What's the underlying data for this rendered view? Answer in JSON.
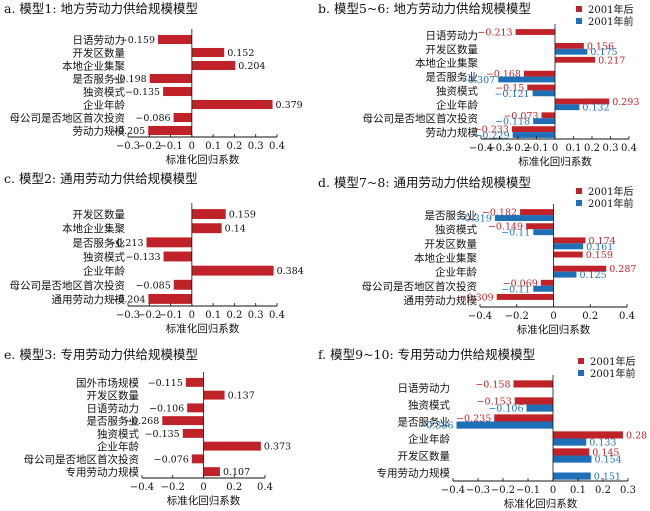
{
  "colors": {
    "after": "#c0222a",
    "before": "#1f6fb7",
    "axis": "#111111"
  },
  "chart_data": [
    {
      "type": "bar",
      "title": "a. 模型1: 地方劳动力供给规模模型",
      "xlabel": "标准化回归系数",
      "xlim": [
        -0.3,
        0.4
      ],
      "xticks": [
        -0.3,
        -0.2,
        -0.1,
        0,
        0.1,
        0.2,
        0.3,
        0.4
      ],
      "xticklabels": [
        "−0.3",
        "−0.2",
        "−0.1",
        "0",
        "0.1",
        "0.2",
        "0.3",
        "0.4"
      ],
      "categories": [
        "日语劳动力",
        "开发区数量",
        "本地企业集聚",
        "是否服务业",
        "独资模式",
        "企业年龄",
        "母公司是否地区首次投资",
        "劳动力规模"
      ],
      "series": [
        {
          "key": "after",
          "values": [
            -0.159,
            0.152,
            0.204,
            -0.198,
            -0.135,
            0.379,
            -0.086,
            -0.205
          ],
          "labels": [
            "−0.159",
            "0.152",
            "0.204",
            "−0.198",
            "−0.135",
            "0.379",
            "−0.086",
            "−0.205"
          ]
        }
      ]
    },
    {
      "type": "bar",
      "title": "b. 模型5~6: 地方劳动力供给规模模型",
      "xlabel": "标准化回归系数",
      "xlim": [
        -0.4,
        0.4
      ],
      "xticks": [
        -0.4,
        -0.3,
        -0.2,
        -0.1,
        0,
        0.1,
        0.2,
        0.3,
        0.4
      ],
      "xticklabels": [
        "−0.4",
        "−0.3",
        "−0.2",
        "−0.1",
        "0",
        "0.1",
        "0.2",
        "0.3",
        "0.4"
      ],
      "categories": [
        "日语劳动力",
        "开发区数量",
        "本地企业集聚",
        "是否服务业",
        "独资模式",
        "企业年龄",
        "母公司是否地区首次投资",
        "劳动力规模"
      ],
      "legend": [
        "2001年后",
        "2001年前"
      ],
      "series": [
        {
          "name": "2001年后",
          "key": "after",
          "values": [
            -0.213,
            0.156,
            0.217,
            -0.168,
            -0.15,
            0.293,
            -0.073,
            -0.233
          ],
          "labels": [
            "−0.213",
            "0.156",
            "0.217",
            "−0.168",
            "−0.15",
            "0.293",
            "−0.073",
            "−0.233"
          ]
        },
        {
          "name": "2001年前",
          "key": "before",
          "values": [
            null,
            0.175,
            null,
            -0.307,
            -0.121,
            0.132,
            -0.118,
            -0.229
          ],
          "labels": [
            null,
            "0.175",
            null,
            "−0.307",
            "−0.121",
            "0.132",
            "−0.118",
            "−0.229"
          ]
        }
      ]
    },
    {
      "type": "bar",
      "title": "c. 模型2: 通用劳动力供给规模模型",
      "xlabel": "标准化回归系数",
      "xlim": [
        -0.3,
        0.4
      ],
      "xticks": [
        -0.3,
        -0.2,
        -0.1,
        0,
        0.1,
        0.2,
        0.3,
        0.4
      ],
      "xticklabels": [
        "−0.3",
        "−0.2",
        "−0.1",
        "0",
        "0.1",
        "0.2",
        "0.3",
        "0.4"
      ],
      "categories": [
        "开发区数量",
        "本地企业集聚",
        "是否服务业",
        "独资模式",
        "企业年龄",
        "母公司是否地区首次投资",
        "通用劳动力规模"
      ],
      "series": [
        {
          "key": "after",
          "values": [
            0.159,
            0.14,
            -0.213,
            -0.133,
            0.384,
            -0.085,
            -0.204
          ],
          "labels": [
            "0.159",
            "0.14",
            "−0.213",
            "−0.133",
            "0.384",
            "−0.085",
            "−0.204"
          ]
        }
      ]
    },
    {
      "type": "bar",
      "title": "d. 模型7~8: 通用劳动力供给规模模型",
      "xlabel": "标准化回归系数",
      "xlim": [
        -0.4,
        0.4
      ],
      "xticks": [
        -0.4,
        -0.2,
        0,
        0.2,
        0.4
      ],
      "xticklabels": [
        "−0.4",
        "−0.2",
        "0",
        "0.2",
        "0.4"
      ],
      "categories": [
        "是否服务业",
        "独资模式",
        "开发区数量",
        "本地企业集聚",
        "企业年龄",
        "母公司是否地区首次投资",
        "通用劳动力规模"
      ],
      "legend": [
        "2001年后",
        "2001年前"
      ],
      "series": [
        {
          "name": "2001年后",
          "key": "after",
          "values": [
            -0.182,
            -0.149,
            0.174,
            0.159,
            0.287,
            -0.069,
            -0.309
          ],
          "labels": [
            "−0.182",
            "−0.149",
            "0.174",
            "0.159",
            "0.287",
            "−0.069",
            "−0.309"
          ]
        },
        {
          "name": "2001年前",
          "key": "before",
          "values": [
            -0.319,
            -0.11,
            0.161,
            null,
            0.125,
            -0.11,
            null
          ],
          "labels": [
            "−0.319",
            "−0.11",
            "0.161",
            null,
            "0.125",
            "−0.11",
            null
          ]
        }
      ]
    },
    {
      "type": "bar",
      "title": "e. 模型3: 专用劳动力供给规模模型",
      "xlabel": "标准化回归系数",
      "xlim": [
        -0.4,
        0.4
      ],
      "xticks": [
        -0.4,
        -0.2,
        0,
        0.2,
        0.4
      ],
      "xticklabels": [
        "−0.4",
        "−0.2",
        "0",
        "0.2",
        "0.4"
      ],
      "categories": [
        "国外市场规模",
        "开发区数量",
        "日语劳动力",
        "是否服务业",
        "独资模式",
        "企业年龄",
        "母公司是否地区首次投资",
        "专用劳动力规模"
      ],
      "series": [
        {
          "key": "after",
          "values": [
            -0.115,
            0.137,
            -0.106,
            -0.268,
            -0.135,
            0.373,
            -0.076,
            0.107
          ],
          "labels": [
            "−0.115",
            "0.137",
            "−0.106",
            "−0.268",
            "−0.135",
            "0.373",
            "−0.076",
            "0.107"
          ]
        }
      ]
    },
    {
      "type": "bar",
      "title": "f. 模型9~10: 专用劳动力供给规模模型",
      "xlabel": "标准化回归系数",
      "xlim": [
        -0.4,
        0.3
      ],
      "xticks": [
        -0.4,
        -0.3,
        -0.2,
        -0.1,
        0,
        0.1,
        0.2,
        0.3
      ],
      "xticklabels": [
        "−0.4",
        "−0.3",
        "−0.2",
        "−0.1",
        "0",
        "0.1",
        "0.2",
        "0.3"
      ],
      "categories": [
        "日语劳动力",
        "独资模式",
        "是否服务业",
        "企业年龄",
        "开发区数量",
        "专用劳动力规模"
      ],
      "legend": [
        "2001年后",
        "2001年前"
      ],
      "series": [
        {
          "name": "2001年后",
          "key": "after",
          "values": [
            -0.158,
            -0.153,
            -0.235,
            0.28,
            0.145,
            null
          ],
          "labels": [
            "−0.158",
            "−0.153",
            "−0.235",
            "0.28",
            "0.145",
            null
          ]
        },
        {
          "name": "2001年前",
          "key": "before",
          "values": [
            null,
            -0.106,
            -0.386,
            0.133,
            0.154,
            0.151
          ],
          "labels": [
            null,
            "−0.106",
            "−0.386",
            "0.133",
            "0.154",
            "0.151"
          ]
        }
      ]
    }
  ]
}
